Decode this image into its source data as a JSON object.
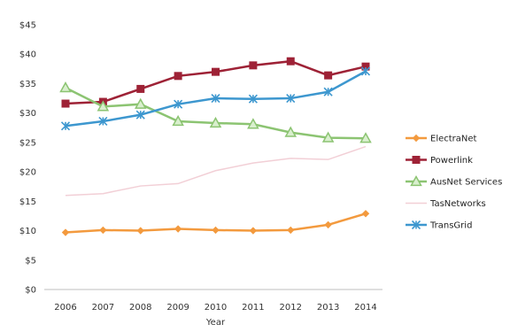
{
  "chart_data": {
    "type": "line",
    "title": "",
    "xlabel": "Year",
    "ylabel": "",
    "x": [
      "2006",
      "2007",
      "2008",
      "2009",
      "2010",
      "2011",
      "2012",
      "2013",
      "2014"
    ],
    "y_ticks": [
      "$0",
      "$5",
      "$10",
      "$15",
      "$20",
      "$25",
      "$30",
      "$35",
      "$40",
      "$45"
    ],
    "ylim": [
      0,
      45
    ],
    "grid": false,
    "legend_position": "right",
    "series": [
      {
        "name": "ElectraNet",
        "color": "#f39a3e",
        "marker": "diamond",
        "values": [
          9.7,
          10.1,
          10.0,
          10.3,
          10.1,
          10.0,
          10.1,
          11.0,
          12.9
        ]
      },
      {
        "name": "Powerlink",
        "color": "#9e2236",
        "marker": "square",
        "values": [
          31.6,
          31.9,
          34.1,
          36.3,
          37.0,
          38.1,
          38.8,
          36.4,
          37.9
        ]
      },
      {
        "name": "AusNet Services",
        "color": "#8cc472",
        "marker": "triangle",
        "values": [
          34.3,
          31.1,
          31.5,
          28.6,
          28.3,
          28.1,
          26.7,
          25.8,
          25.7
        ]
      },
      {
        "name": "TasNetworks",
        "color": "#f2cfd6",
        "marker": "none",
        "values": [
          16.0,
          16.3,
          17.6,
          18.0,
          20.2,
          21.5,
          22.3,
          22.1,
          24.3
        ]
      },
      {
        "name": "TransGrid",
        "color": "#3d97cf",
        "marker": "star",
        "values": [
          27.8,
          28.6,
          29.7,
          31.5,
          32.5,
          32.4,
          32.5,
          33.6,
          37.1
        ]
      }
    ]
  }
}
